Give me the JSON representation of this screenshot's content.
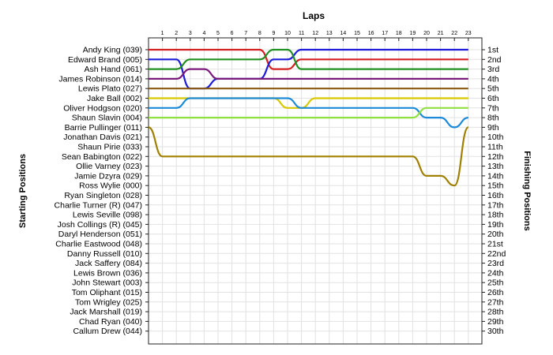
{
  "chart_data": {
    "type": "line",
    "title": "Laps",
    "ylabel_left": "Starting Positions",
    "ylabel_right": "Finishing Positions",
    "laps": [
      1,
      2,
      3,
      4,
      5,
      6,
      7,
      8,
      9,
      10,
      11,
      12,
      13,
      14,
      15,
      16,
      17,
      18,
      19,
      20,
      21,
      22,
      23
    ],
    "starting_grid": [
      "Andy King (039)",
      "Edward Brand (005)",
      "Ash Hand (061)",
      "James Robinson (014)",
      "Lewis Plato (027)",
      "Jake Ball (002)",
      "Oliver Hodgson (020)",
      "Shaun Slavin (004)",
      "Barrie Pullinger (011)",
      "Jonathan Davis (021)",
      "Shaun Pirie (033)",
      "Sean Babington (022)",
      "Ollie Varney (023)",
      "Jamie Dzyra (029)",
      "Ross Wylie (000)",
      "Ryan Singleton (028)",
      "Charlie Turner (R) (047)",
      "Lewis Seville (098)",
      "Josh Collings (R) (045)",
      "Daryl Henderson (051)",
      "Charlie Eastwood (048)",
      "Danny Russell (010)",
      "Jack Saffery (084)",
      "Lewis Brown (036)",
      "John Stewart (003)",
      "Tom Oliphant (015)",
      "Tom Wrigley (025)",
      "Jack Marshall (019)",
      "Chad Ryan (040)",
      "Callum Drew (044)"
    ],
    "finishing_positions": [
      "1st",
      "2nd",
      "3rd",
      "4th",
      "5th",
      "6th",
      "7th",
      "8th",
      "9th",
      "10th",
      "11th",
      "12th",
      "13th",
      "14th",
      "15th",
      "16th",
      "17th",
      "18th",
      "19th",
      "20th",
      "21st",
      "22nd",
      "23rd",
      "24th",
      "25th",
      "26th",
      "27th",
      "28th",
      "29th",
      "30th"
    ],
    "series": [
      {
        "color": "#d42020",
        "positions": [
          1,
          1,
          1,
          1,
          1,
          1,
          1,
          1,
          1,
          3,
          3,
          2,
          2,
          2,
          2,
          2,
          2,
          2,
          2,
          2,
          2,
          2,
          2,
          2
        ]
      },
      {
        "color": "#1c1cd8",
        "positions": [
          2,
          2,
          2,
          5,
          5,
          4,
          4,
          4,
          4,
          2,
          2,
          1,
          1,
          1,
          1,
          1,
          1,
          1,
          1,
          1,
          1,
          1,
          1,
          1
        ]
      },
      {
        "color": "#209020",
        "positions": [
          3,
          3,
          3,
          2,
          2,
          2,
          2,
          2,
          2,
          1,
          1,
          3,
          3,
          3,
          3,
          3,
          3,
          3,
          3,
          3,
          3,
          3,
          3,
          3
        ]
      },
      {
        "color": "#7a1a7a",
        "positions": [
          4,
          4,
          4,
          3,
          3,
          4,
          4,
          4,
          4,
          4,
          4,
          4,
          4,
          4,
          4,
          4,
          4,
          4,
          4,
          4,
          4,
          4,
          4,
          4
        ]
      },
      {
        "color": "#8a5a10",
        "positions": [
          5,
          5,
          5,
          5,
          5,
          5,
          5,
          5,
          5,
          5,
          5,
          5,
          5,
          5,
          5,
          5,
          5,
          5,
          5,
          5,
          5,
          5,
          5,
          5
        ]
      },
      {
        "color": "#d8c800",
        "positions": [
          6,
          6,
          6,
          6,
          6,
          6,
          6,
          6,
          6,
          6,
          7,
          7,
          6,
          6,
          6,
          6,
          6,
          6,
          6,
          6,
          6,
          6,
          6,
          6
        ]
      },
      {
        "color": "#1c8ad8",
        "positions": [
          7,
          7,
          7,
          6,
          6,
          6,
          6,
          6,
          6,
          6,
          6,
          7,
          7,
          7,
          7,
          7,
          7,
          7,
          7,
          7,
          8,
          8,
          9,
          8
        ]
      },
      {
        "color": "#90e040",
        "positions": [
          8,
          8,
          8,
          8,
          8,
          8,
          8,
          8,
          8,
          8,
          8,
          8,
          8,
          8,
          8,
          8,
          8,
          8,
          8,
          8,
          7,
          7,
          7,
          7
        ]
      },
      {
        "color": "#a08000",
        "positions": [
          9,
          12,
          12,
          12,
          12,
          12,
          12,
          12,
          12,
          12,
          12,
          12,
          12,
          12,
          12,
          12,
          12,
          12,
          12,
          12,
          14,
          14,
          15,
          9
        ]
      }
    ]
  }
}
